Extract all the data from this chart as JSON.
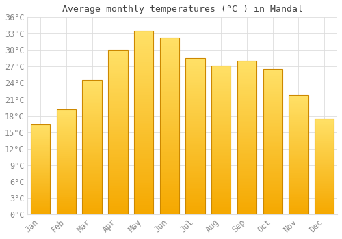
{
  "title": "Average monthly temperatures (°C ) in Māndal",
  "months": [
    "Jan",
    "Feb",
    "Mar",
    "Apr",
    "May",
    "Jun",
    "Jul",
    "Aug",
    "Sep",
    "Oct",
    "Nov",
    "Dec"
  ],
  "temperatures": [
    16.5,
    19.2,
    24.5,
    30.0,
    33.5,
    32.3,
    28.5,
    27.2,
    28.0,
    26.5,
    21.8,
    17.5
  ],
  "bar_color_bottom": "#F5A800",
  "bar_color_top": "#FFE066",
  "bar_edge_color": "#CC8800",
  "background_color": "#FFFFFF",
  "grid_color": "#DDDDDD",
  "tick_label_color": "#888888",
  "title_color": "#444444",
  "ylim": [
    0,
    36
  ],
  "yticks": [
    0,
    3,
    6,
    9,
    12,
    15,
    18,
    21,
    24,
    27,
    30,
    33,
    36
  ],
  "ytick_labels": [
    "0°C",
    "3°C",
    "6°C",
    "9°C",
    "12°C",
    "15°C",
    "18°C",
    "21°C",
    "24°C",
    "27°C",
    "30°C",
    "33°C",
    "36°C"
  ],
  "bar_width": 0.75
}
